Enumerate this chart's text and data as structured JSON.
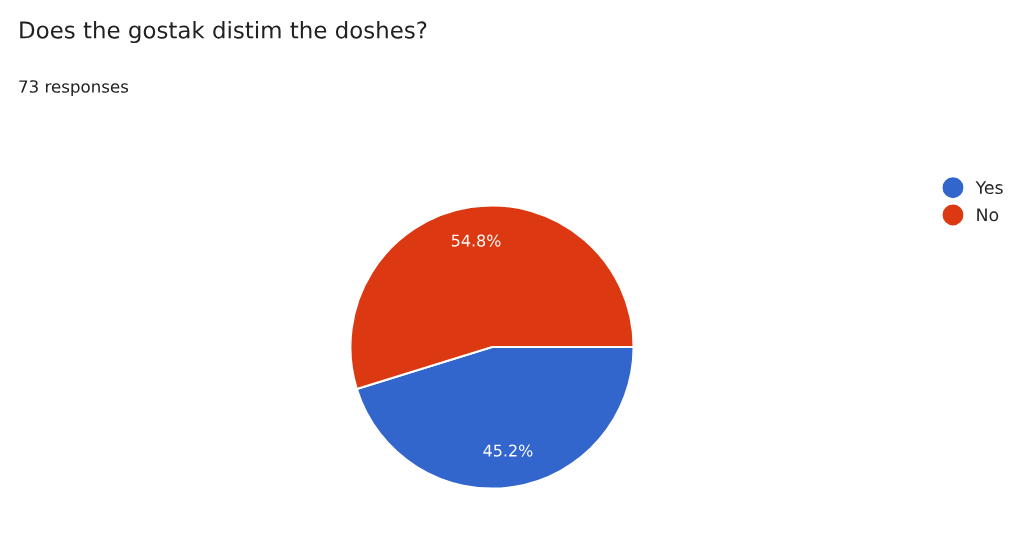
{
  "chart_data": {
    "type": "pie",
    "title": "Does the gostak distim the doshes?",
    "subtitle": "73 responses",
    "categories": [
      "Yes",
      "No"
    ],
    "values": [
      45.2,
      54.8
    ],
    "colors": [
      "#3366cc",
      "#dc3912"
    ],
    "value_labels": [
      "45.2%",
      "54.8%"
    ],
    "legend": "right"
  }
}
